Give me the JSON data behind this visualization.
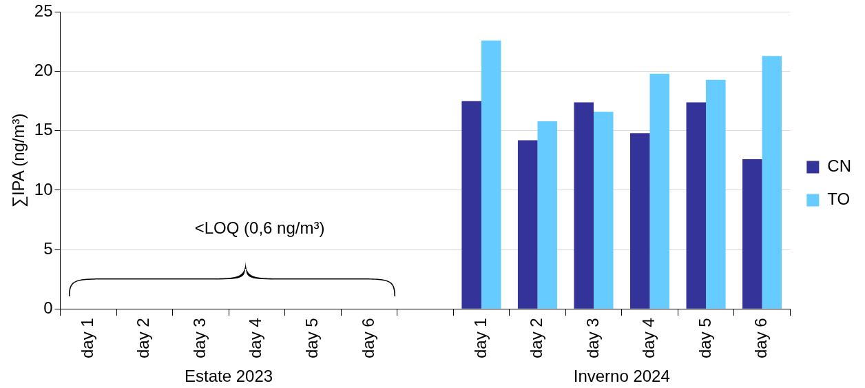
{
  "chart_data": {
    "type": "bar",
    "ylabel": "∑IPA (ng/m³)",
    "categories": [
      "day 1",
      "day 2",
      "day 3",
      "day 4",
      "day 5",
      "day 6",
      null,
      "day 1",
      "day 2",
      "day 3",
      "day 4",
      "day 5",
      "day 6"
    ],
    "series": [
      {
        "name": "CN",
        "color": "#333399",
        "values": [
          null,
          null,
          null,
          null,
          null,
          null,
          null,
          17.5,
          14.2,
          17.4,
          14.8,
          17.4,
          12.6
        ]
      },
      {
        "name": "TO",
        "color": "#66ccff",
        "values": [
          null,
          null,
          null,
          null,
          null,
          null,
          null,
          22.6,
          15.8,
          16.6,
          19.8,
          19.3,
          21.3
        ]
      }
    ],
    "ylim": [
      0,
      25
    ],
    "yticks": [
      0,
      5,
      10,
      15,
      20,
      25
    ],
    "grid": "y",
    "legend": "right",
    "annotations": [
      "Estate 2023",
      "Inverno 2024",
      "<LOQ (0,6 ng/m³)"
    ]
  }
}
